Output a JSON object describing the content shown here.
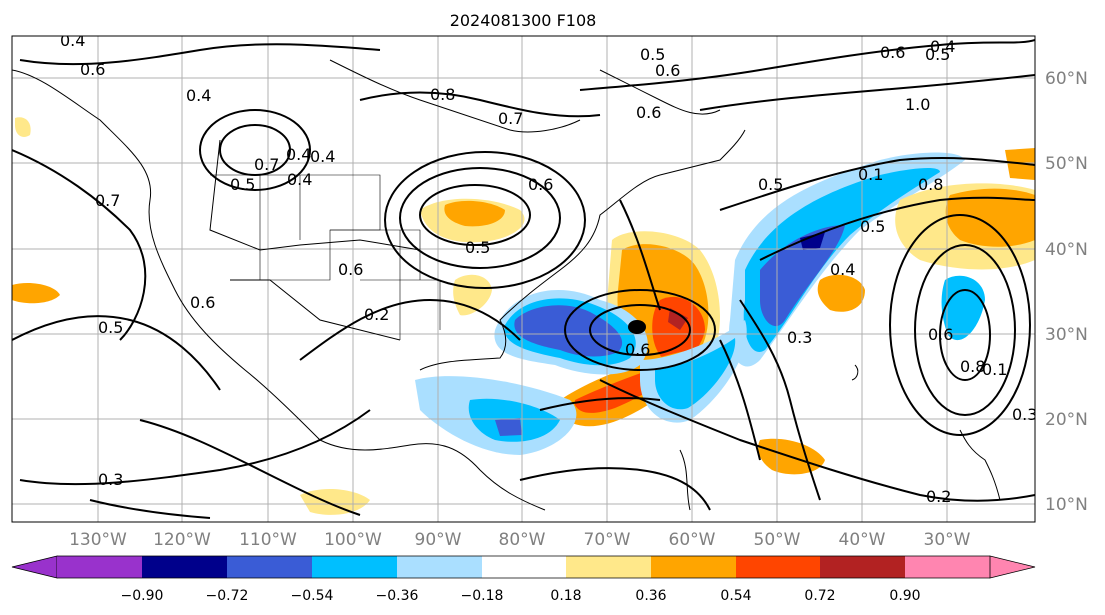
{
  "title": "2024081300 F108",
  "lat_labels": [
    "60°N",
    "50°N",
    "40°N",
    "30°N",
    "20°N",
    "10°N"
  ],
  "lon_labels": [
    "130°W",
    "120°W",
    "110°W",
    "100°W",
    "90°W",
    "80°W",
    "70°W",
    "60°W",
    "50°W",
    "40°W",
    "30°W"
  ],
  "colorbar": {
    "colors": [
      "#9932cc",
      "#00008b",
      "#3a5cd6",
      "#00bfff",
      "#aadfff",
      "#ffffff",
      "#ffe88a",
      "#ffa500",
      "#ff4500",
      "#b22222",
      "#ff85b0"
    ],
    "tick_labels": [
      "−0.90",
      "−0.72",
      "−0.54",
      "−0.36",
      "−0.18",
      "0.18",
      "0.36",
      "0.54",
      "0.72",
      "0.90"
    ]
  },
  "contour_labels": [
    "0.4",
    "0.6",
    "0.4",
    "0.8",
    "0.7",
    "0.5",
    "0.4",
    "0.6",
    "0.6",
    "0.5",
    "1.0",
    "0.4",
    "0.7",
    "0.6",
    "0.4",
    "0.5",
    "0.6",
    "0.4",
    "0.7",
    "0.6",
    "0.5",
    "0.8",
    "0.1",
    "0.5",
    "0.5",
    "0.2",
    "0.6",
    "0.6",
    "0.5",
    "0.4",
    "0.3",
    "0.6",
    "0.8",
    "0.1",
    "0.3",
    "0.3",
    "0.2"
  ]
}
